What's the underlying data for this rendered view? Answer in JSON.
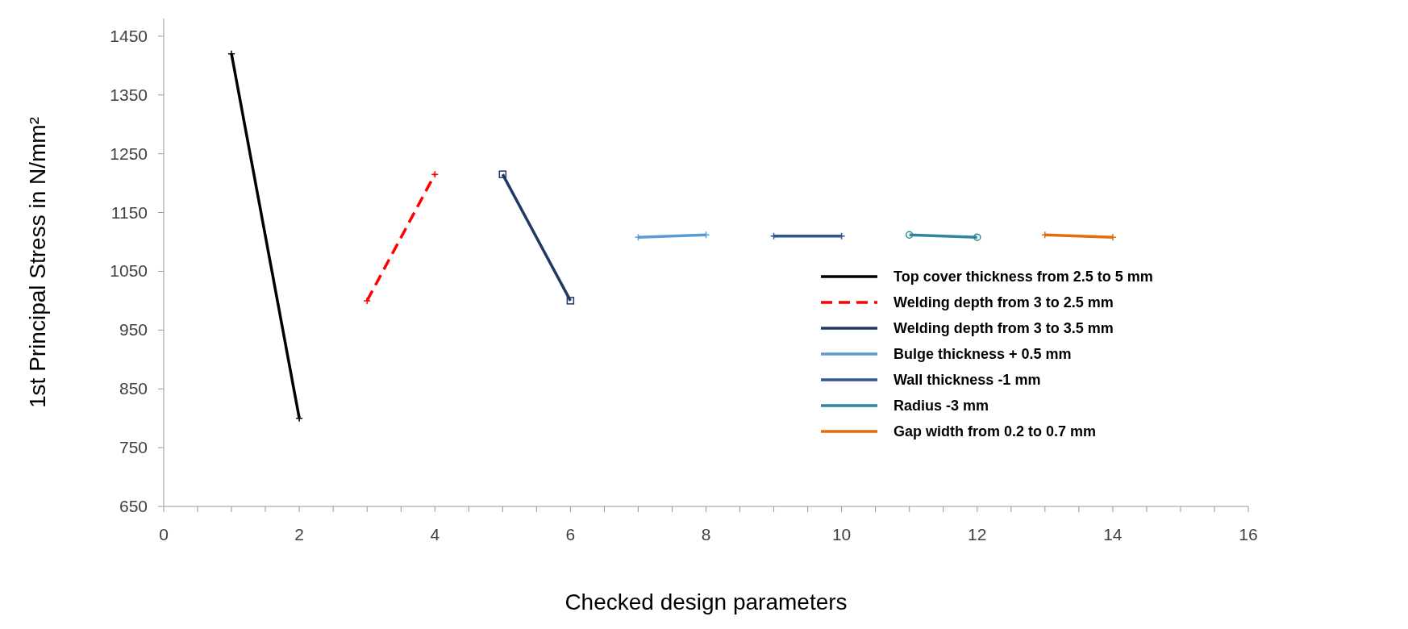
{
  "chart_data": {
    "type": "line",
    "xlabel": "Checked design parameters",
    "ylabel": "1st Principal Stress in N/mm²",
    "xlim": [
      0,
      16
    ],
    "xticks": [
      0,
      {
        "value": 0.5,
        "label": null
      },
      {
        "value": 1,
        "label": null
      },
      {
        "value": 1.5,
        "label": null
      },
      2,
      {
        "value": 2.5,
        "label": null
      },
      {
        "value": 3,
        "label": null
      },
      {
        "value": 3.5,
        "label": null
      },
      4,
      {
        "value": 4.5,
        "label": null
      },
      {
        "value": 5,
        "label": null
      },
      {
        "value": 5.5,
        "label": null
      },
      6,
      {
        "value": 6.5,
        "label": null
      },
      {
        "value": 7,
        "label": null
      },
      {
        "value": 7.5,
        "label": null
      },
      8,
      {
        "value": 8.5,
        "label": null
      },
      {
        "value": 9,
        "label": null
      },
      {
        "value": 9.5,
        "label": null
      },
      10,
      {
        "value": 10.5,
        "label": null
      },
      {
        "value": 11,
        "label": null
      },
      {
        "value": 11.5,
        "label": null
      },
      12,
      {
        "value": 12.5,
        "label": null
      },
      {
        "value": 13,
        "label": null
      },
      {
        "value": 13.5,
        "label": null
      },
      14,
      {
        "value": 14.5,
        "label": null
      },
      {
        "value": 15,
        "label": null
      },
      {
        "value": 15.5,
        "label": null
      },
      16
    ],
    "ylim": [
      650,
      1480
    ],
    "yticks": [
      650,
      750,
      850,
      950,
      1050,
      1150,
      1250,
      1350,
      1450
    ],
    "legend": "bottom right",
    "grid": false,
    "series": [
      {
        "name": "Top cover thickness from 2.5 to 5 mm",
        "color": "#000000",
        "x": [
          1,
          2
        ],
        "values": [
          1420,
          800
        ],
        "marker": "cross",
        "line_style": "solid"
      },
      {
        "name": "Welding depth from 3 to 2.5 mm",
        "color": "#ff0000",
        "x": [
          3,
          4
        ],
        "values": [
          1000,
          1215
        ],
        "marker": "cross",
        "line_style": "dashed"
      },
      {
        "name": "Welding depth from 3 to 3.5 mm",
        "color": "#1f3864",
        "x": [
          5,
          6
        ],
        "values": [
          1215,
          1000
        ],
        "marker": "square",
        "line_style": "solid"
      },
      {
        "name": "Bulge thickness + 0.5 mm",
        "color": "#5b9bd5",
        "x": [
          7,
          8
        ],
        "values": [
          1108,
          1112
        ],
        "marker": "cross",
        "line_style": "solid"
      },
      {
        "name": "Wall thickness -1 mm",
        "color": "#2f5597",
        "x": [
          9,
          10
        ],
        "values": [
          1110,
          1110
        ],
        "marker": "cross",
        "line_style": "solid"
      },
      {
        "name": "Radius -3 mm",
        "color": "#31859c",
        "x": [
          11,
          12
        ],
        "values": [
          1112,
          1108
        ],
        "marker": "circle",
        "line_style": "solid"
      },
      {
        "name": "Gap width from 0.2 to 0.7 mm",
        "color": "#e36c0a",
        "x": [
          13,
          14
        ],
        "values": [
          1112,
          1108
        ],
        "marker": "cross",
        "line_style": "solid"
      }
    ]
  }
}
